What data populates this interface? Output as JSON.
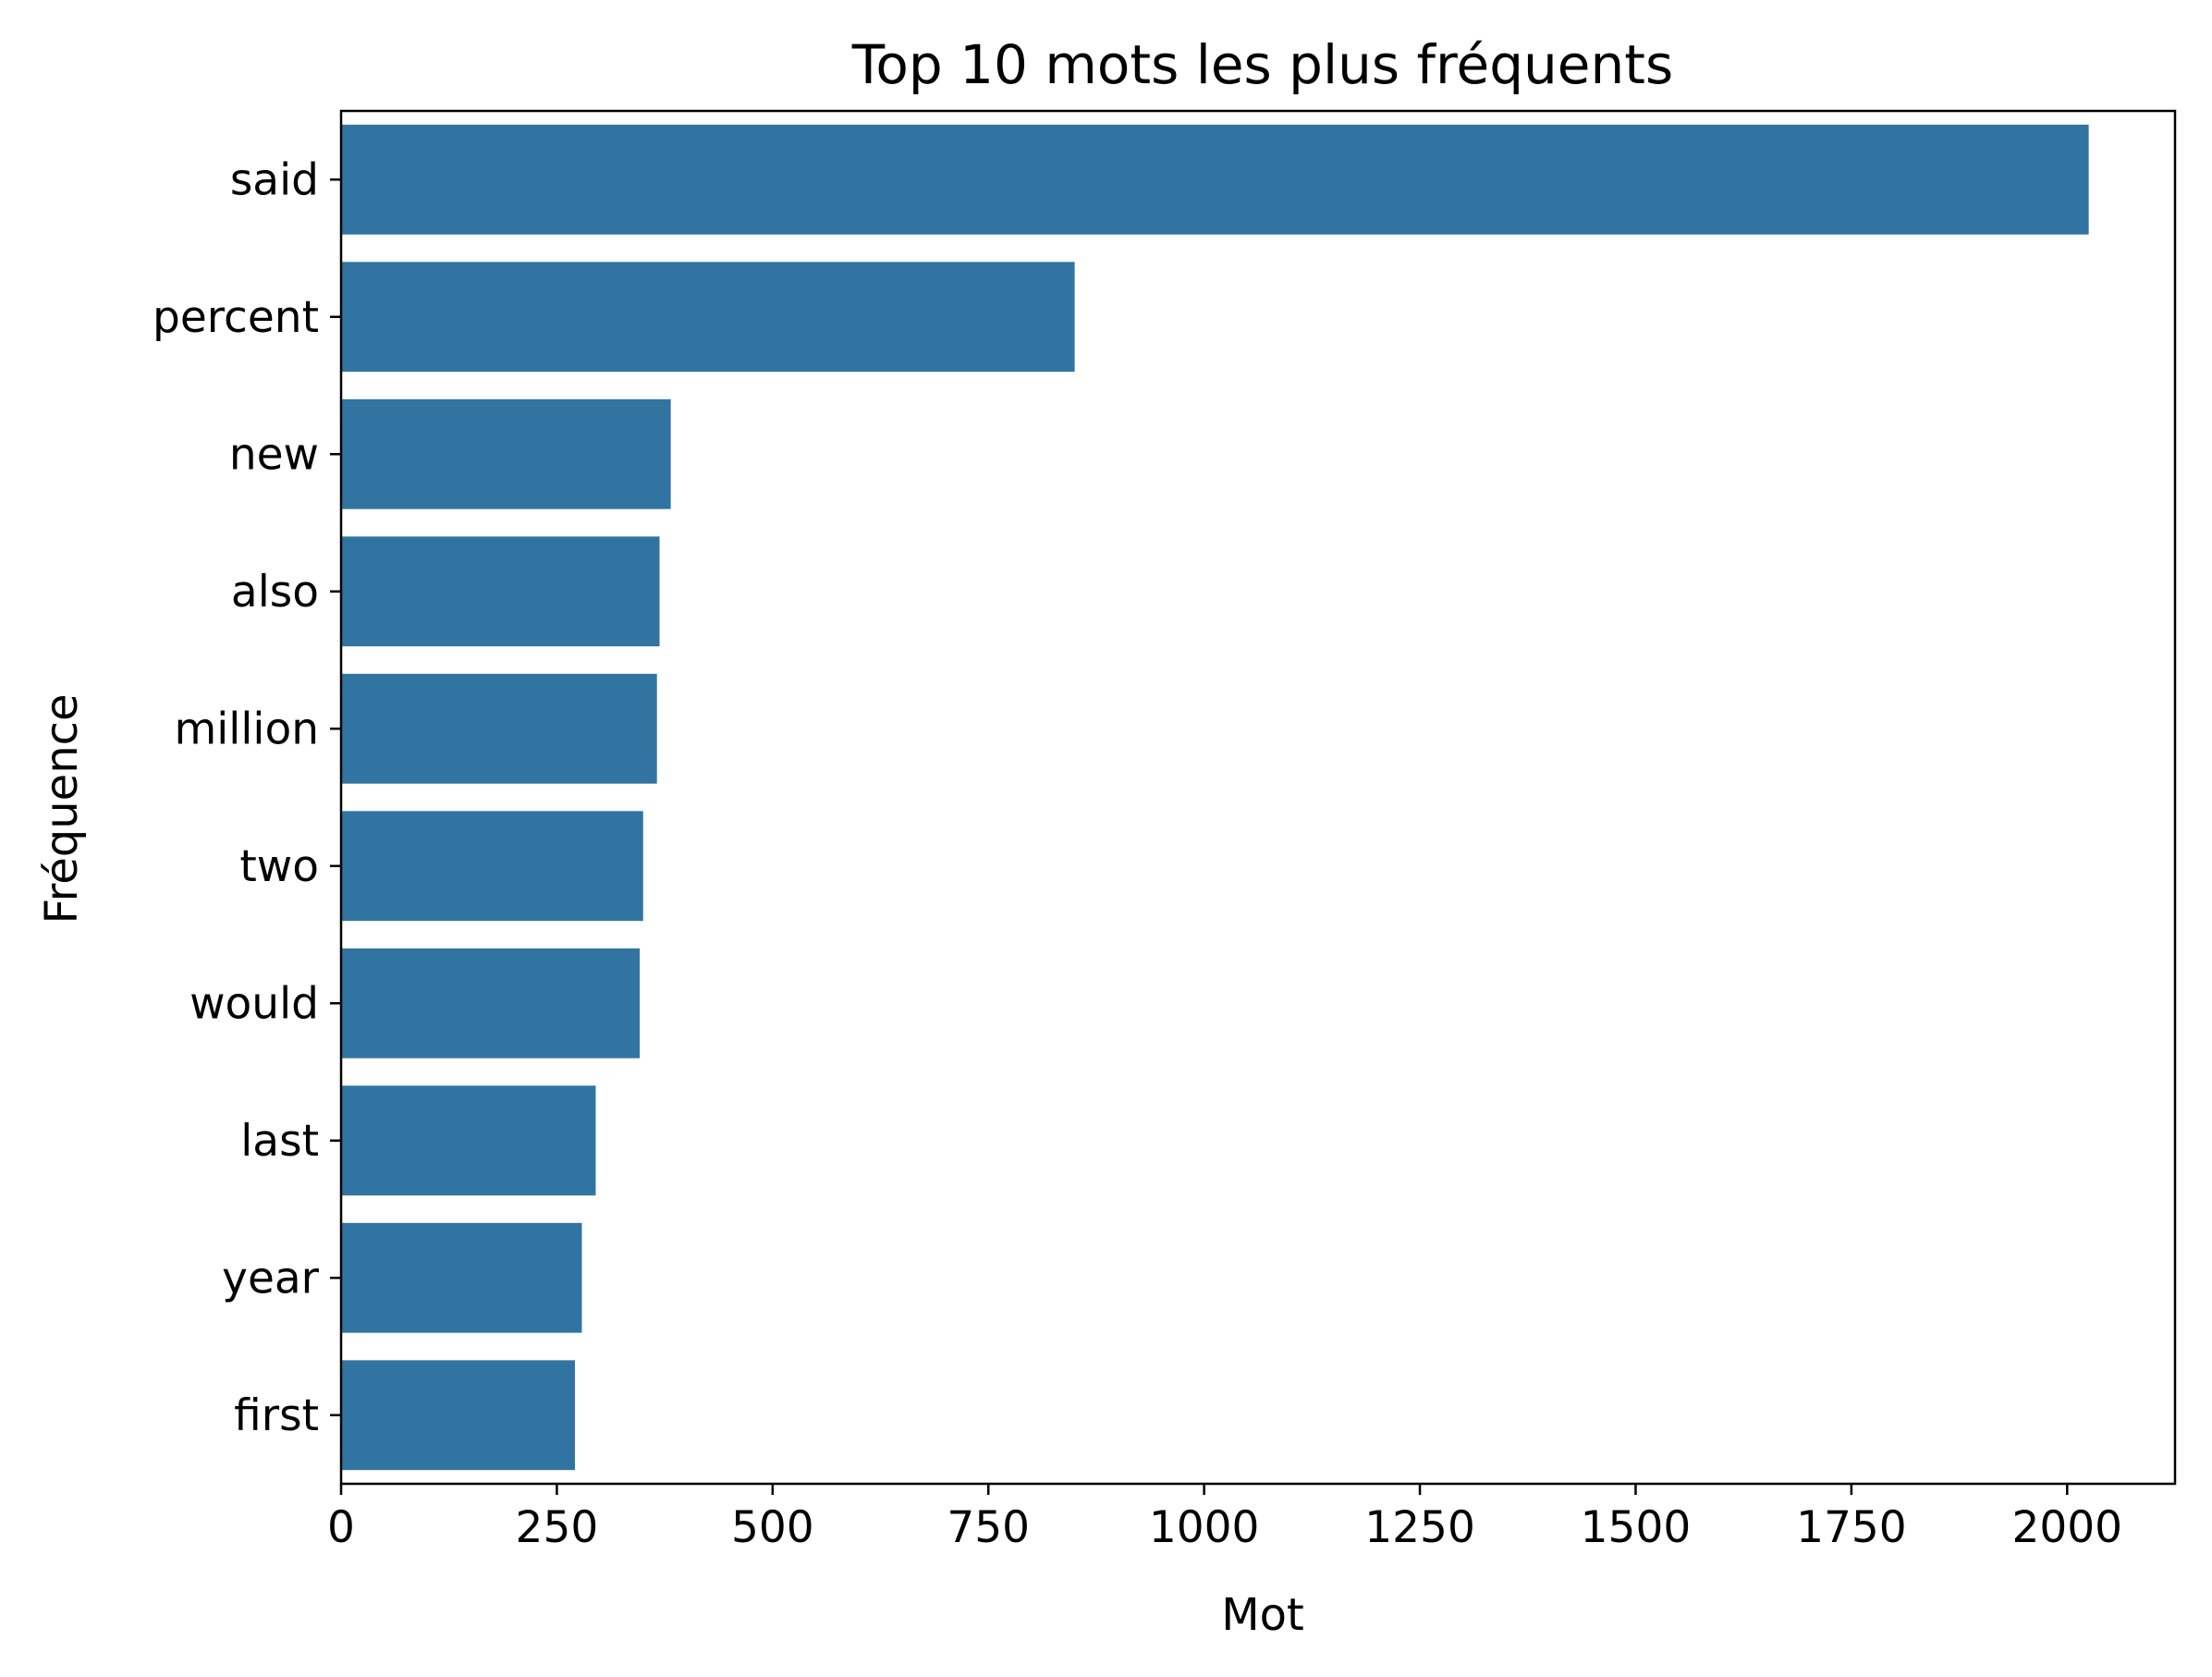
{
  "chart_data": {
    "type": "bar",
    "orientation": "horizontal",
    "title": "Top 10 mots les plus fréquents",
    "xlabel": "Mot",
    "ylabel": "Fréquence",
    "categories": [
      "said",
      "percent",
      "new",
      "also",
      "million",
      "two",
      "would",
      "last",
      "year",
      "first"
    ],
    "values": [
      2025,
      850,
      382,
      369,
      366,
      350,
      346,
      295,
      279,
      271
    ],
    "xlim": [
      0,
      2125
    ],
    "xticks": [
      0,
      250,
      500,
      750,
      1000,
      1250,
      1500,
      1750,
      2000
    ],
    "xtick_labels": [
      "0",
      "250",
      "500",
      "750",
      "1000",
      "1250",
      "1500",
      "1750",
      "2000"
    ],
    "bar_color": "#3274a1",
    "grid": false,
    "legend": false
  }
}
